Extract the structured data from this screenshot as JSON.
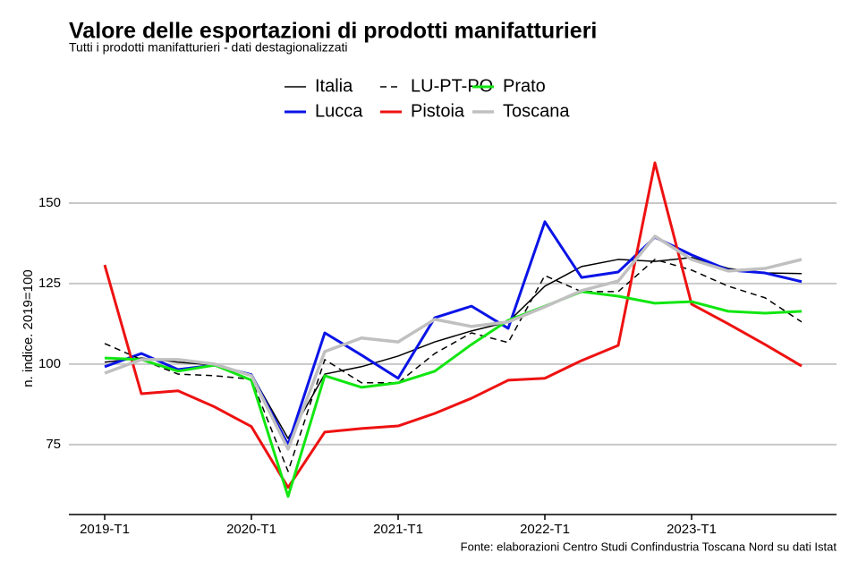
{
  "chart_data": {
    "type": "line",
    "title": "Valore delle esportazioni di prodotti manifatturieri",
    "subtitle": "Tutti i prodotti manifatturieri - dati destagionalizzati",
    "y_label": "n. indice. 2019=100",
    "caption": "Fonte: elaborazioni Centro Studi Confindustria Toscana Nord su dati Istat",
    "categories": [
      "2019-T1",
      null,
      null,
      null,
      "2020-T1",
      null,
      null,
      null,
      "2021-T1",
      null,
      null,
      null,
      "2022-T1",
      null,
      null,
      null,
      "2023-T1",
      null,
      null,
      null
    ],
    "ylim": [
      53.3,
      168.6
    ],
    "yticks": [
      75,
      100,
      125,
      150
    ],
    "grid": true,
    "legend": "top",
    "series": [
      {
        "name": "Italia",
        "color": "#000000",
        "line_width": 1.5,
        "dash": false,
        "values": [
          100.6,
          101.9,
          100.6,
          99.7,
          96.9,
          76.9,
          96.9,
          99.2,
          102.5,
          106.9,
          110.3,
          113.1,
          124.2,
          130.3,
          132.5,
          131.9,
          133.1,
          129.7,
          128.3,
          128.1
        ]
      },
      {
        "name": "Lucca",
        "color": "#0a14e6",
        "line_width": 3,
        "dash": false,
        "values": [
          99.2,
          103.3,
          98.3,
          99.7,
          96.7,
          75,
          109.7,
          102.8,
          95.6,
          114.4,
          118,
          111.1,
          144.2,
          126.9,
          128.6,
          139.4,
          133.9,
          129.2,
          128.3,
          125.6
        ]
      },
      {
        "name": "LU-PT-PO",
        "color": "#000000",
        "line_width": 1.5,
        "dash": true,
        "values": [
          106.4,
          101.4,
          96.9,
          96.4,
          95.3,
          66.7,
          101.4,
          94.2,
          94.2,
          103.3,
          109.7,
          106.7,
          127.5,
          122.5,
          122.5,
          132.5,
          129.2,
          124.2,
          120.6,
          113.1
        ]
      },
      {
        "name": "Pistoia",
        "color": "#ee1111",
        "line_width": 3,
        "dash": false,
        "values": [
          130.8,
          90.8,
          91.7,
          86.7,
          80.6,
          61.7,
          78.9,
          80,
          80.8,
          84.7,
          89.4,
          95,
          95.6,
          101.1,
          105.8,
          162.5,
          118.6,
          112.5,
          106.1,
          99.4
        ]
      },
      {
        "name": "Prato",
        "color": "#11e611",
        "line_width": 3,
        "dash": false,
        "values": [
          101.9,
          101.4,
          97.8,
          99.7,
          95,
          58.9,
          96.4,
          92.8,
          94.2,
          97.8,
          106.1,
          113.6,
          118,
          122.5,
          121.1,
          118.9,
          119.4,
          116.4,
          115.8,
          116.4
        ]
      },
      {
        "name": "Toscana",
        "color": "#c0c0c0",
        "line_width": 3.5,
        "dash": false,
        "values": [
          97.2,
          101.4,
          101.4,
          100,
          96.4,
          73.6,
          103.9,
          108.1,
          106.9,
          113.9,
          111.7,
          113.1,
          117.8,
          122.8,
          125.8,
          139.7,
          132.5,
          128.9,
          129.7,
          132.5
        ]
      }
    ]
  }
}
